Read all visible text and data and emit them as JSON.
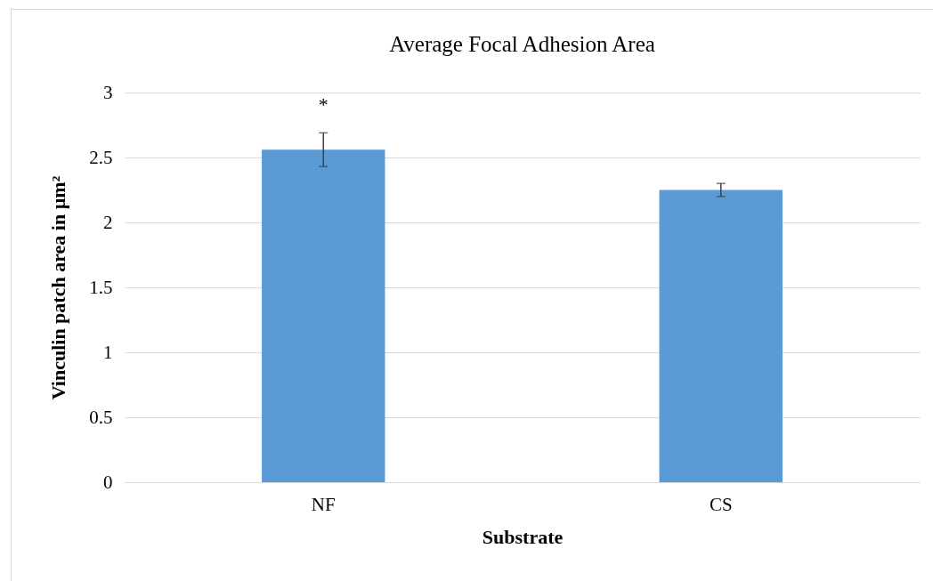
{
  "chart_data": {
    "type": "bar",
    "title": "Average Focal Adhesion Area",
    "xlabel": "Substrate",
    "ylabel": "Vinculin patch area in µm²",
    "categories": [
      "NF",
      "CS"
    ],
    "values": [
      2.56,
      2.25
    ],
    "errors": [
      0.13,
      0.05
    ],
    "color": "#5b9bd5",
    "ylim": [
      0,
      3
    ],
    "yticks": [
      0,
      0.5,
      1,
      1.5,
      2,
      2.5,
      3
    ],
    "grid": "y",
    "annotations": [
      "*"
    ]
  }
}
